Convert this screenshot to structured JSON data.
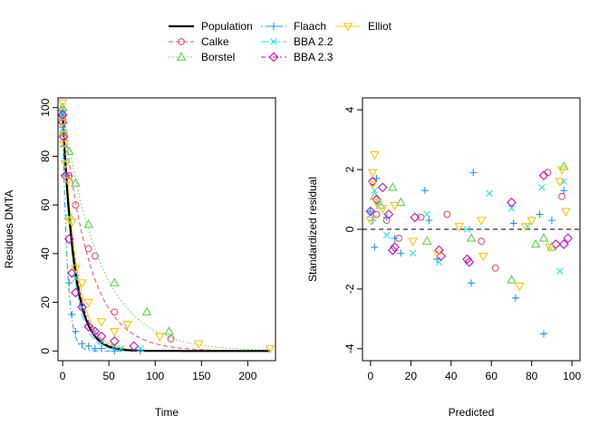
{
  "legend": {
    "placement": "top-center",
    "entries": [
      {
        "name": "Population",
        "color": "#000000",
        "marker": "none",
        "dash": "solid"
      },
      {
        "name": "Calke",
        "color": "#DF536B",
        "marker": "circle",
        "dash": "dashed"
      },
      {
        "name": "Borstel",
        "color": "#61D04F",
        "marker": "triangle",
        "dash": "dotted"
      },
      {
        "name": "Flaach",
        "color": "#2297E6",
        "marker": "plus",
        "dash": "dotdash"
      },
      {
        "name": "BBA 2.2",
        "color": "#28E2E5",
        "marker": "cross",
        "dash": "longdash"
      },
      {
        "name": "BBA 2.3",
        "color": "#CD0BBC",
        "marker": "diamond",
        "dash": "twodash"
      },
      {
        "name": "Elliot",
        "color": "#F5C710",
        "marker": "down-triangle",
        "dash": "solid"
      }
    ]
  },
  "chart_data": [
    {
      "type": "scatter",
      "title": "",
      "xlabel": "Time",
      "ylabel": "Residues DMTA",
      "xlim": [
        -5,
        230
      ],
      "ylim": [
        -4,
        104
      ],
      "xticks": [
        0,
        50,
        100,
        150,
        200
      ],
      "yticks": [
        0,
        20,
        40,
        60,
        80,
        100
      ],
      "grid": false,
      "curves": [
        {
          "name": "Population",
          "k": 0.08,
          "y0": 98
        },
        {
          "name": "Calke",
          "k": 0.035,
          "y0": 100
        },
        {
          "name": "Borstel",
          "k": 0.025,
          "y0": 100
        },
        {
          "name": "Flaach",
          "k": 0.2,
          "y0": 98
        },
        {
          "name": "BBA 2.2",
          "k": 0.09,
          "y0": 100
        },
        {
          "name": "BBA 2.3",
          "k": 0.075,
          "y0": 99
        },
        {
          "name": "Elliot",
          "k": 0.07,
          "y0": 100
        }
      ],
      "series": [
        {
          "name": "Calke",
          "x": [
            0,
            0,
            7,
            14,
            28,
            35,
            56,
            117
          ],
          "y": [
            99,
            96,
            72,
            60,
            42,
            39,
            16,
            5
          ]
        },
        {
          "name": "Borstel",
          "x": [
            0,
            0,
            1,
            7,
            14,
            28,
            56,
            91,
            115
          ],
          "y": [
            100,
            98,
            90,
            82,
            69,
            52,
            28,
            16,
            8
          ]
        },
        {
          "name": "Flaach",
          "x": [
            0,
            0,
            1,
            1,
            3,
            7,
            10,
            14,
            21,
            28,
            35,
            42,
            56,
            84
          ],
          "y": [
            97,
            92,
            90,
            84,
            72,
            28,
            15,
            8,
            3,
            2,
            1,
            1,
            0,
            0
          ]
        },
        {
          "name": "BBA 2.2",
          "x": [
            0,
            0,
            1,
            3,
            7,
            14,
            21,
            35,
            42,
            56,
            63,
            84
          ],
          "y": [
            98,
            96,
            90,
            78,
            55,
            30,
            18,
            8,
            4,
            2,
            1,
            1
          ]
        },
        {
          "name": "BBA 2.3",
          "x": [
            0,
            0,
            1,
            3,
            7,
            10,
            14,
            21,
            28,
            35,
            42,
            56,
            77
          ],
          "y": [
            97,
            94,
            88,
            72,
            46,
            32,
            24,
            18,
            10,
            8,
            6,
            4,
            2
          ]
        },
        {
          "name": "Elliot",
          "x": [
            0,
            0,
            1,
            1,
            3,
            6,
            7,
            10,
            14,
            21,
            28,
            42,
            56,
            70,
            105,
            147,
            224
          ],
          "y": [
            102,
            94,
            89,
            85,
            77,
            70,
            54,
            53,
            34,
            28,
            20,
            12,
            8,
            11,
            6,
            3,
            1
          ]
        }
      ]
    },
    {
      "type": "scatter",
      "title": "",
      "xlabel": "Predicted",
      "ylabel": "Standardized residual",
      "xlim": [
        -4,
        104
      ],
      "ylim": [
        -4.4,
        4.4
      ],
      "xticks": [
        0,
        20,
        40,
        60,
        80,
        100
      ],
      "yticks": [
        -4,
        -2,
        0,
        2,
        4
      ],
      "grid": false,
      "reference_line": 0,
      "series": [
        {
          "name": "Calke",
          "x": [
            1,
            3,
            8,
            14,
            25,
            38,
            55,
            62,
            88,
            95
          ],
          "y": [
            1.6,
            0.5,
            0.3,
            -0.3,
            0.4,
            0.5,
            -0.4,
            -1.3,
            1.9,
            1.1
          ]
        },
        {
          "name": "Borstel",
          "x": [
            2,
            5,
            11,
            15,
            28,
            50,
            70,
            82,
            86,
            90,
            96
          ],
          "y": [
            1.1,
            0.8,
            1.4,
            0.9,
            -0.4,
            -0.3,
            -1.7,
            -0.5,
            -0.3,
            -0.6,
            2.1
          ]
        },
        {
          "name": "Flaach",
          "x": [
            0,
            1,
            2,
            3,
            8,
            12,
            15,
            27,
            29,
            33,
            50,
            51,
            71,
            72,
            84,
            86,
            90,
            96
          ],
          "y": [
            0.6,
            0.3,
            -0.6,
            1.7,
            0.4,
            -0.3,
            -0.8,
            1.3,
            0.3,
            -1.0,
            -1.8,
            1.9,
            0.2,
            -2.3,
            0.5,
            -3.5,
            0.3,
            1.3
          ]
        },
        {
          "name": "BBA 2.2",
          "x": [
            0,
            2,
            4,
            8,
            21,
            28,
            34,
            48,
            59,
            70,
            78,
            85,
            94,
            96
          ],
          "y": [
            0.5,
            1.3,
            0.9,
            -0.2,
            -0.8,
            0.5,
            -1.1,
            0.0,
            1.2,
            0.7,
            0.1,
            1.4,
            -1.4,
            1.6
          ]
        },
        {
          "name": "BBA 2.3",
          "x": [
            0,
            1,
            3,
            6,
            9,
            11,
            12,
            22,
            34,
            35,
            48,
            49,
            70,
            86,
            92,
            96,
            98
          ],
          "y": [
            0.6,
            1.6,
            1.0,
            1.4,
            0.5,
            -0.7,
            -0.6,
            0.4,
            -0.7,
            -0.9,
            -1.0,
            -1.1,
            0.9,
            1.8,
            -0.5,
            -0.5,
            -0.3
          ]
        },
        {
          "name": "Elliot",
          "x": [
            0,
            1,
            1,
            2,
            3,
            6,
            12,
            21,
            33,
            44,
            55,
            56,
            74,
            77,
            80,
            89,
            94,
            95,
            97
          ],
          "y": [
            0.3,
            1.5,
            1.9,
            2.5,
            0.9,
            0.7,
            0.8,
            -0.4,
            -0.8,
            0.1,
            0.3,
            -0.9,
            -1.9,
            0.1,
            0.3,
            -0.6,
            1.6,
            2.0,
            0.6
          ]
        }
      ]
    }
  ]
}
